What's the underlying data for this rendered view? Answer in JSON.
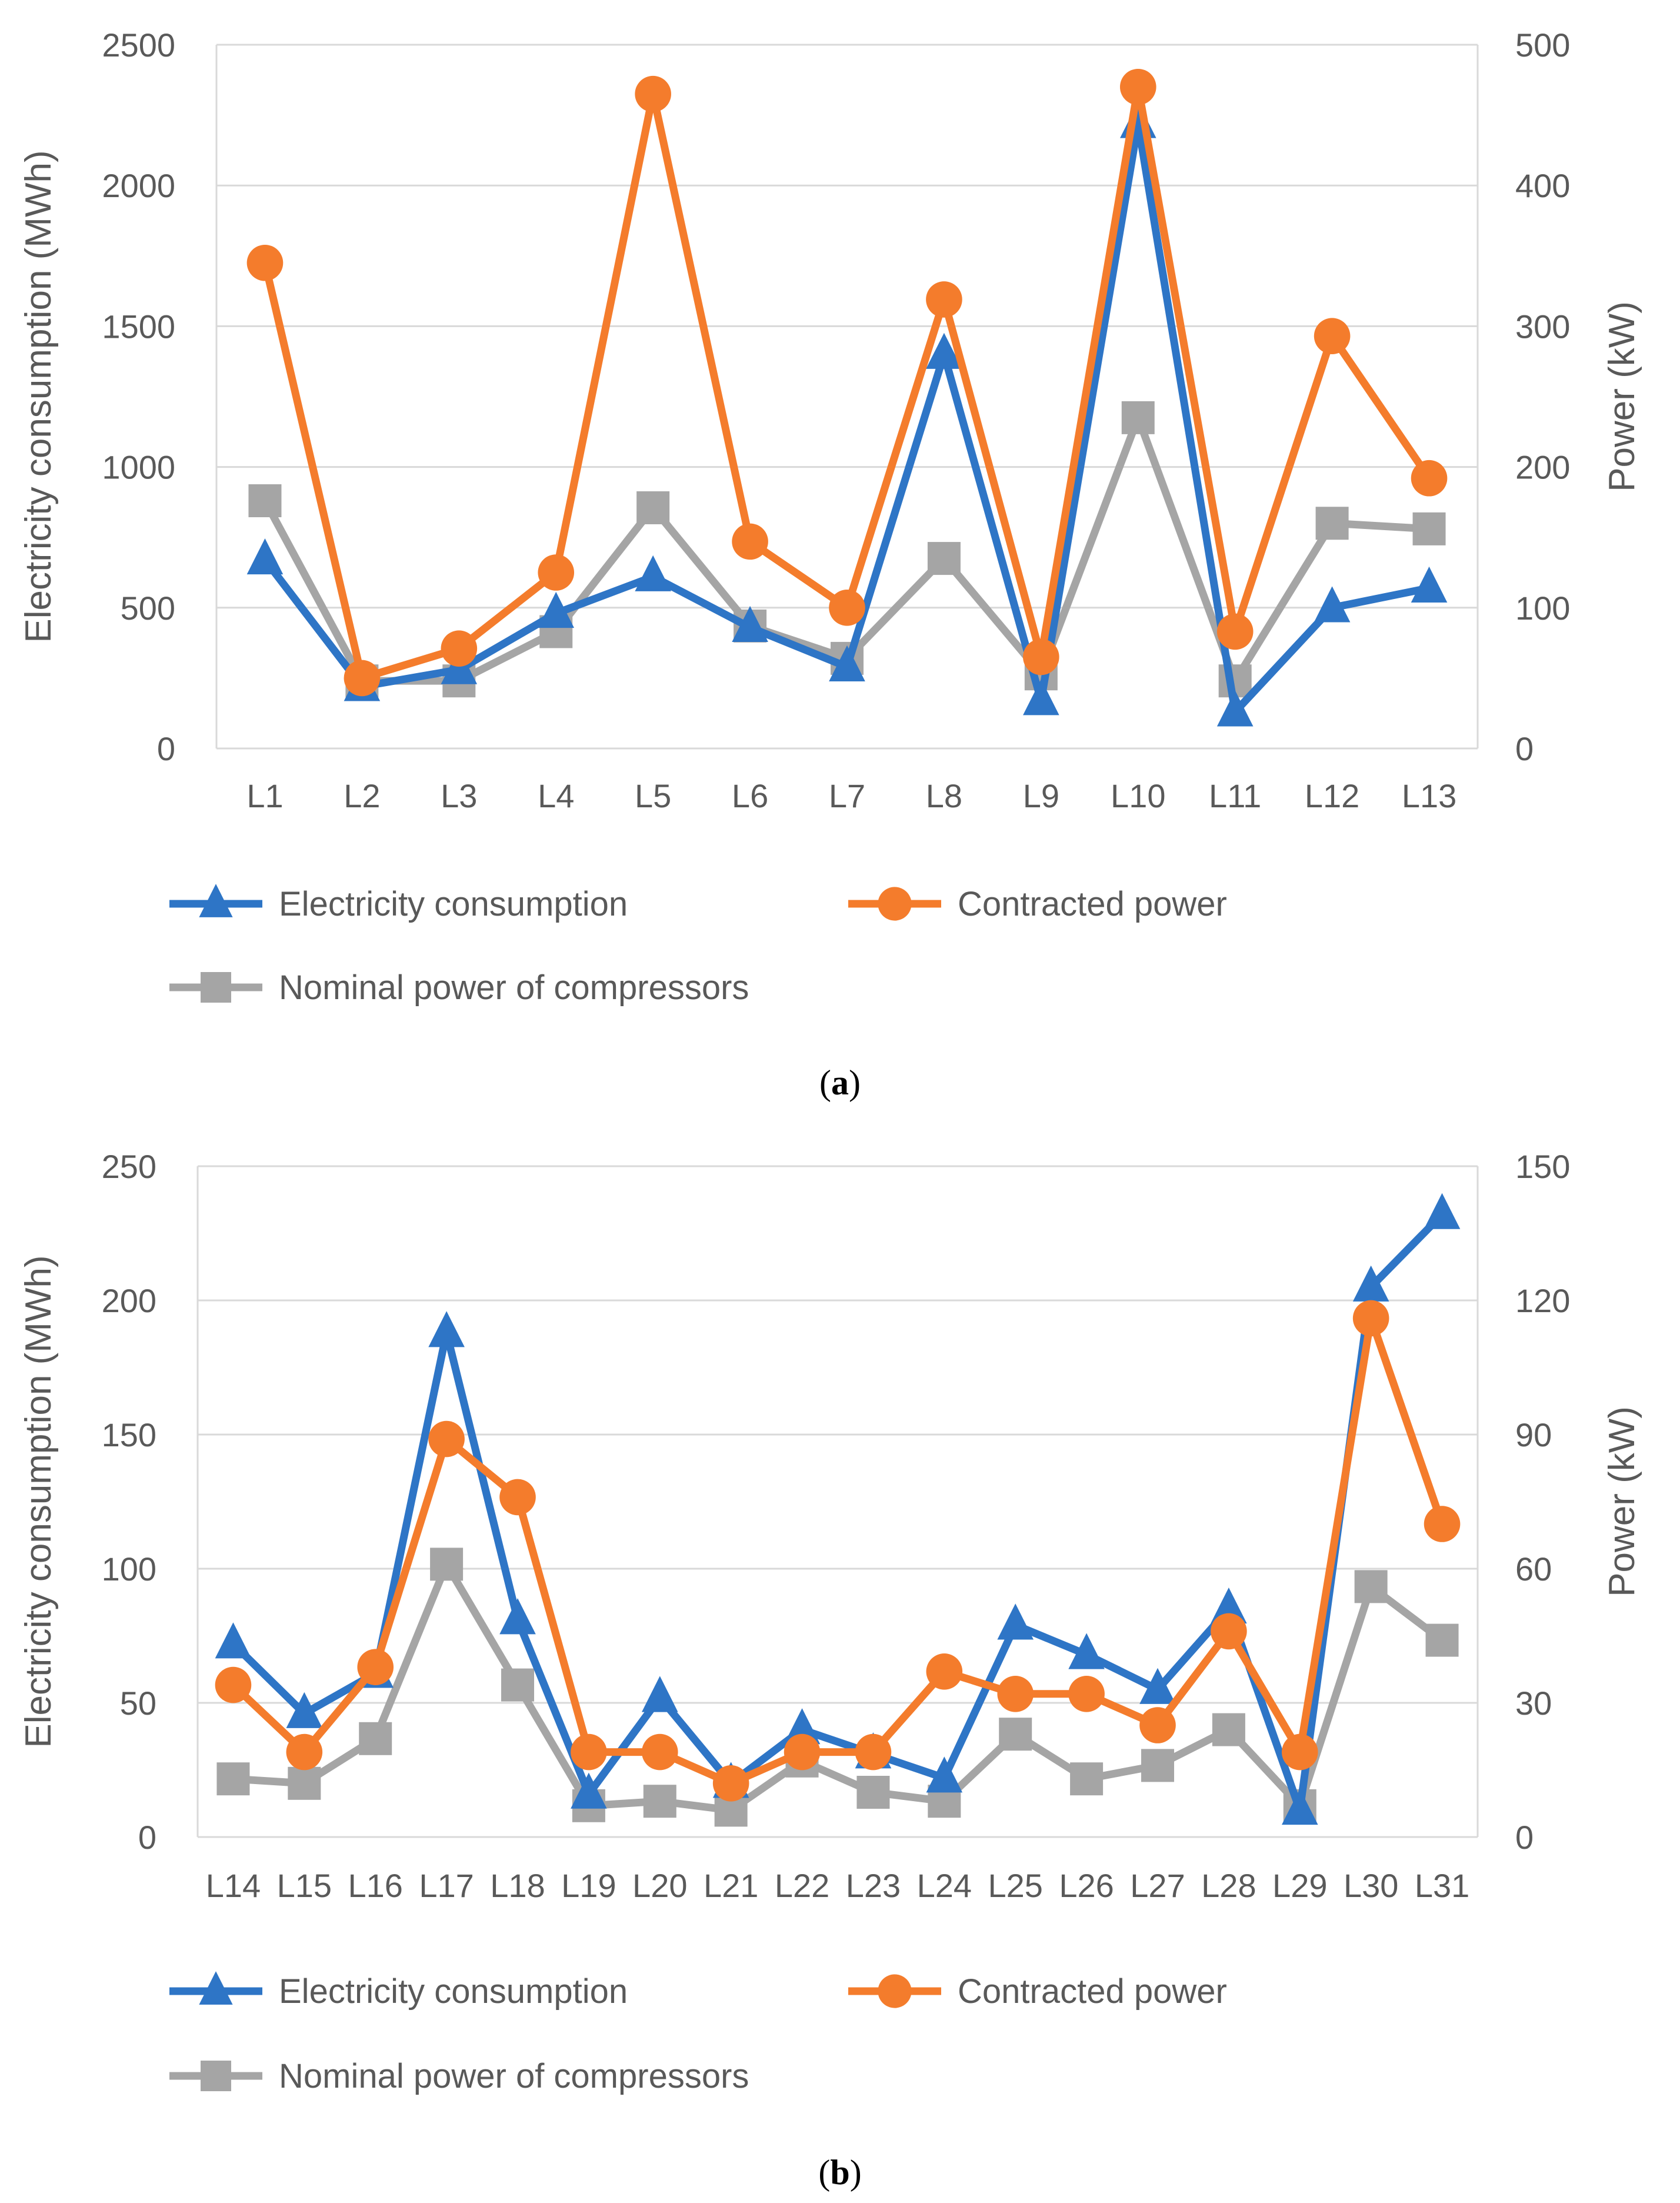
{
  "colors": {
    "electricity": "#2E75C6",
    "contracted": "#F47C2C",
    "nominal": "#A5A5A5",
    "grid": "#D9D9D9",
    "text": "#595959"
  },
  "chart_data": [
    {
      "type": "line",
      "caption": {
        "open": "(",
        "letter": "a",
        "close": ")"
      },
      "categories": [
        "L1",
        "L2",
        "L3",
        "L4",
        "L5",
        "L6",
        "L7",
        "L8",
        "L9",
        "L10",
        "L11",
        "L12",
        "L13"
      ],
      "ylabel": "Electricity consumption (MWh)",
      "y2label": "Power (kW)",
      "ylim": [
        0,
        2500
      ],
      "y2lim": [
        0,
        500
      ],
      "yticks": [
        0,
        500,
        1000,
        1500,
        2000,
        2500
      ],
      "y2ticks": [
        0,
        100,
        200,
        300,
        400,
        500
      ],
      "grid": true,
      "legend_position": "bottom",
      "series": [
        {
          "name": "Electricity consumption",
          "axis": "left",
          "marker": "triangle",
          "color_key": "electricity",
          "values": [
            670,
            220,
            280,
            480,
            610,
            430,
            290,
            1400,
            170,
            2220,
            130,
            500,
            570
          ]
        },
        {
          "name": "Contracted power",
          "axis": "right",
          "marker": "circle",
          "color_key": "contracted",
          "values": [
            345,
            50,
            71,
            125,
            465,
            147,
            100,
            319,
            65,
            470,
            83,
            293,
            192
          ]
        },
        {
          "name": "Nominal power of compressors",
          "axis": "right",
          "marker": "square",
          "color_key": "nominal",
          "values": [
            176,
            48,
            48,
            83,
            171,
            87,
            64,
            135,
            53,
            235,
            48,
            160,
            156
          ]
        }
      ]
    },
    {
      "type": "line",
      "caption": {
        "open": "(",
        "letter": "b",
        "close": ")"
      },
      "categories": [
        "L14",
        "L15",
        "L16",
        "L17",
        "L18",
        "L19",
        "L20",
        "L21",
        "L22",
        "L23",
        "L24",
        "L25",
        "L26",
        "L27",
        "L28",
        "L29",
        "L30",
        "L31"
      ],
      "ylabel": "Electricity consumption (MWh)",
      "y2label": "Power (kW)",
      "ylim": [
        0,
        250
      ],
      "y2lim": [
        0,
        150
      ],
      "yticks": [
        0,
        50,
        100,
        150,
        200,
        250
      ],
      "y2ticks": [
        0,
        30,
        60,
        90,
        120,
        150
      ],
      "grid": true,
      "legend_position": "bottom",
      "series": [
        {
          "name": "Electricity consumption",
          "axis": "left",
          "marker": "triangle",
          "color_key": "electricity",
          "values": [
            72,
            46,
            61,
            188,
            81,
            16,
            52,
            20,
            40,
            31,
            22,
            79,
            68,
            55,
            85,
            10,
            205,
            232
          ]
        },
        {
          "name": "Contracted power",
          "axis": "right",
          "marker": "circle",
          "color_key": "contracted",
          "values": [
            34,
            19,
            38,
            89,
            76,
            19,
            19,
            12,
            19,
            19,
            37,
            32,
            32,
            25,
            46,
            19,
            116,
            70
          ]
        },
        {
          "name": "Nominal power of compressors",
          "axis": "right",
          "marker": "square",
          "color_key": "nominal",
          "values": [
            13,
            12,
            22,
            61,
            34,
            7,
            8,
            6,
            17,
            10,
            8,
            23,
            13,
            16,
            24,
            7,
            56,
            44
          ]
        }
      ]
    }
  ]
}
